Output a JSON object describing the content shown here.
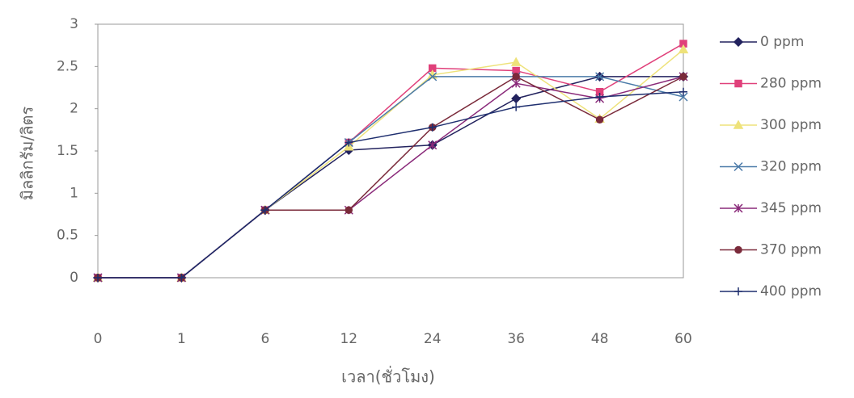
{
  "chart_data": {
    "type": "line",
    "categories": [
      "0",
      "1",
      "6",
      "12",
      "24",
      "36",
      "48",
      "60"
    ],
    "x_label": "เวลา(ชั่วโมง)",
    "y_label": "มิลลิกรัม/ลิตร",
    "ylim": [
      0,
      3
    ],
    "yticks": [
      0,
      0.5,
      1,
      1.5,
      2,
      2.5,
      3
    ],
    "series": [
      {
        "name": "0 ppm",
        "color": "#22225e",
        "marker": "diamond",
        "values": [
          0,
          0,
          0.8,
          1.51,
          1.57,
          2.12,
          2.38,
          2.38
        ]
      },
      {
        "name": "280 ppm",
        "color": "#e0407a",
        "marker": "square",
        "values": [
          0,
          0,
          0.8,
          1.6,
          2.48,
          2.45,
          2.2,
          2.77
        ]
      },
      {
        "name": "300 ppm",
        "color": "#eee27a",
        "marker": "triangle",
        "values": [
          0,
          0,
          0.8,
          1.55,
          2.4,
          2.55,
          1.88,
          2.7
        ]
      },
      {
        "name": "320 ppm",
        "color": "#4a7aa8",
        "marker": "x",
        "values": [
          0,
          0,
          0.8,
          1.6,
          2.38,
          2.38,
          2.38,
          2.14
        ]
      },
      {
        "name": "345 ppm",
        "color": "#8a2a7a",
        "marker": "star",
        "values": [
          0,
          0,
          0.8,
          0.8,
          1.57,
          2.3,
          2.12,
          2.38
        ]
      },
      {
        "name": "370 ppm",
        "color": "#7a2a3a",
        "marker": "circle",
        "values": [
          0,
          0,
          0.8,
          0.8,
          1.78,
          2.38,
          1.87,
          2.38
        ]
      },
      {
        "name": "400 ppm",
        "color": "#1f2f6f",
        "marker": "plus",
        "values": [
          0,
          0,
          0.8,
          1.6,
          1.78,
          2.02,
          2.14,
          2.2
        ]
      }
    ]
  }
}
